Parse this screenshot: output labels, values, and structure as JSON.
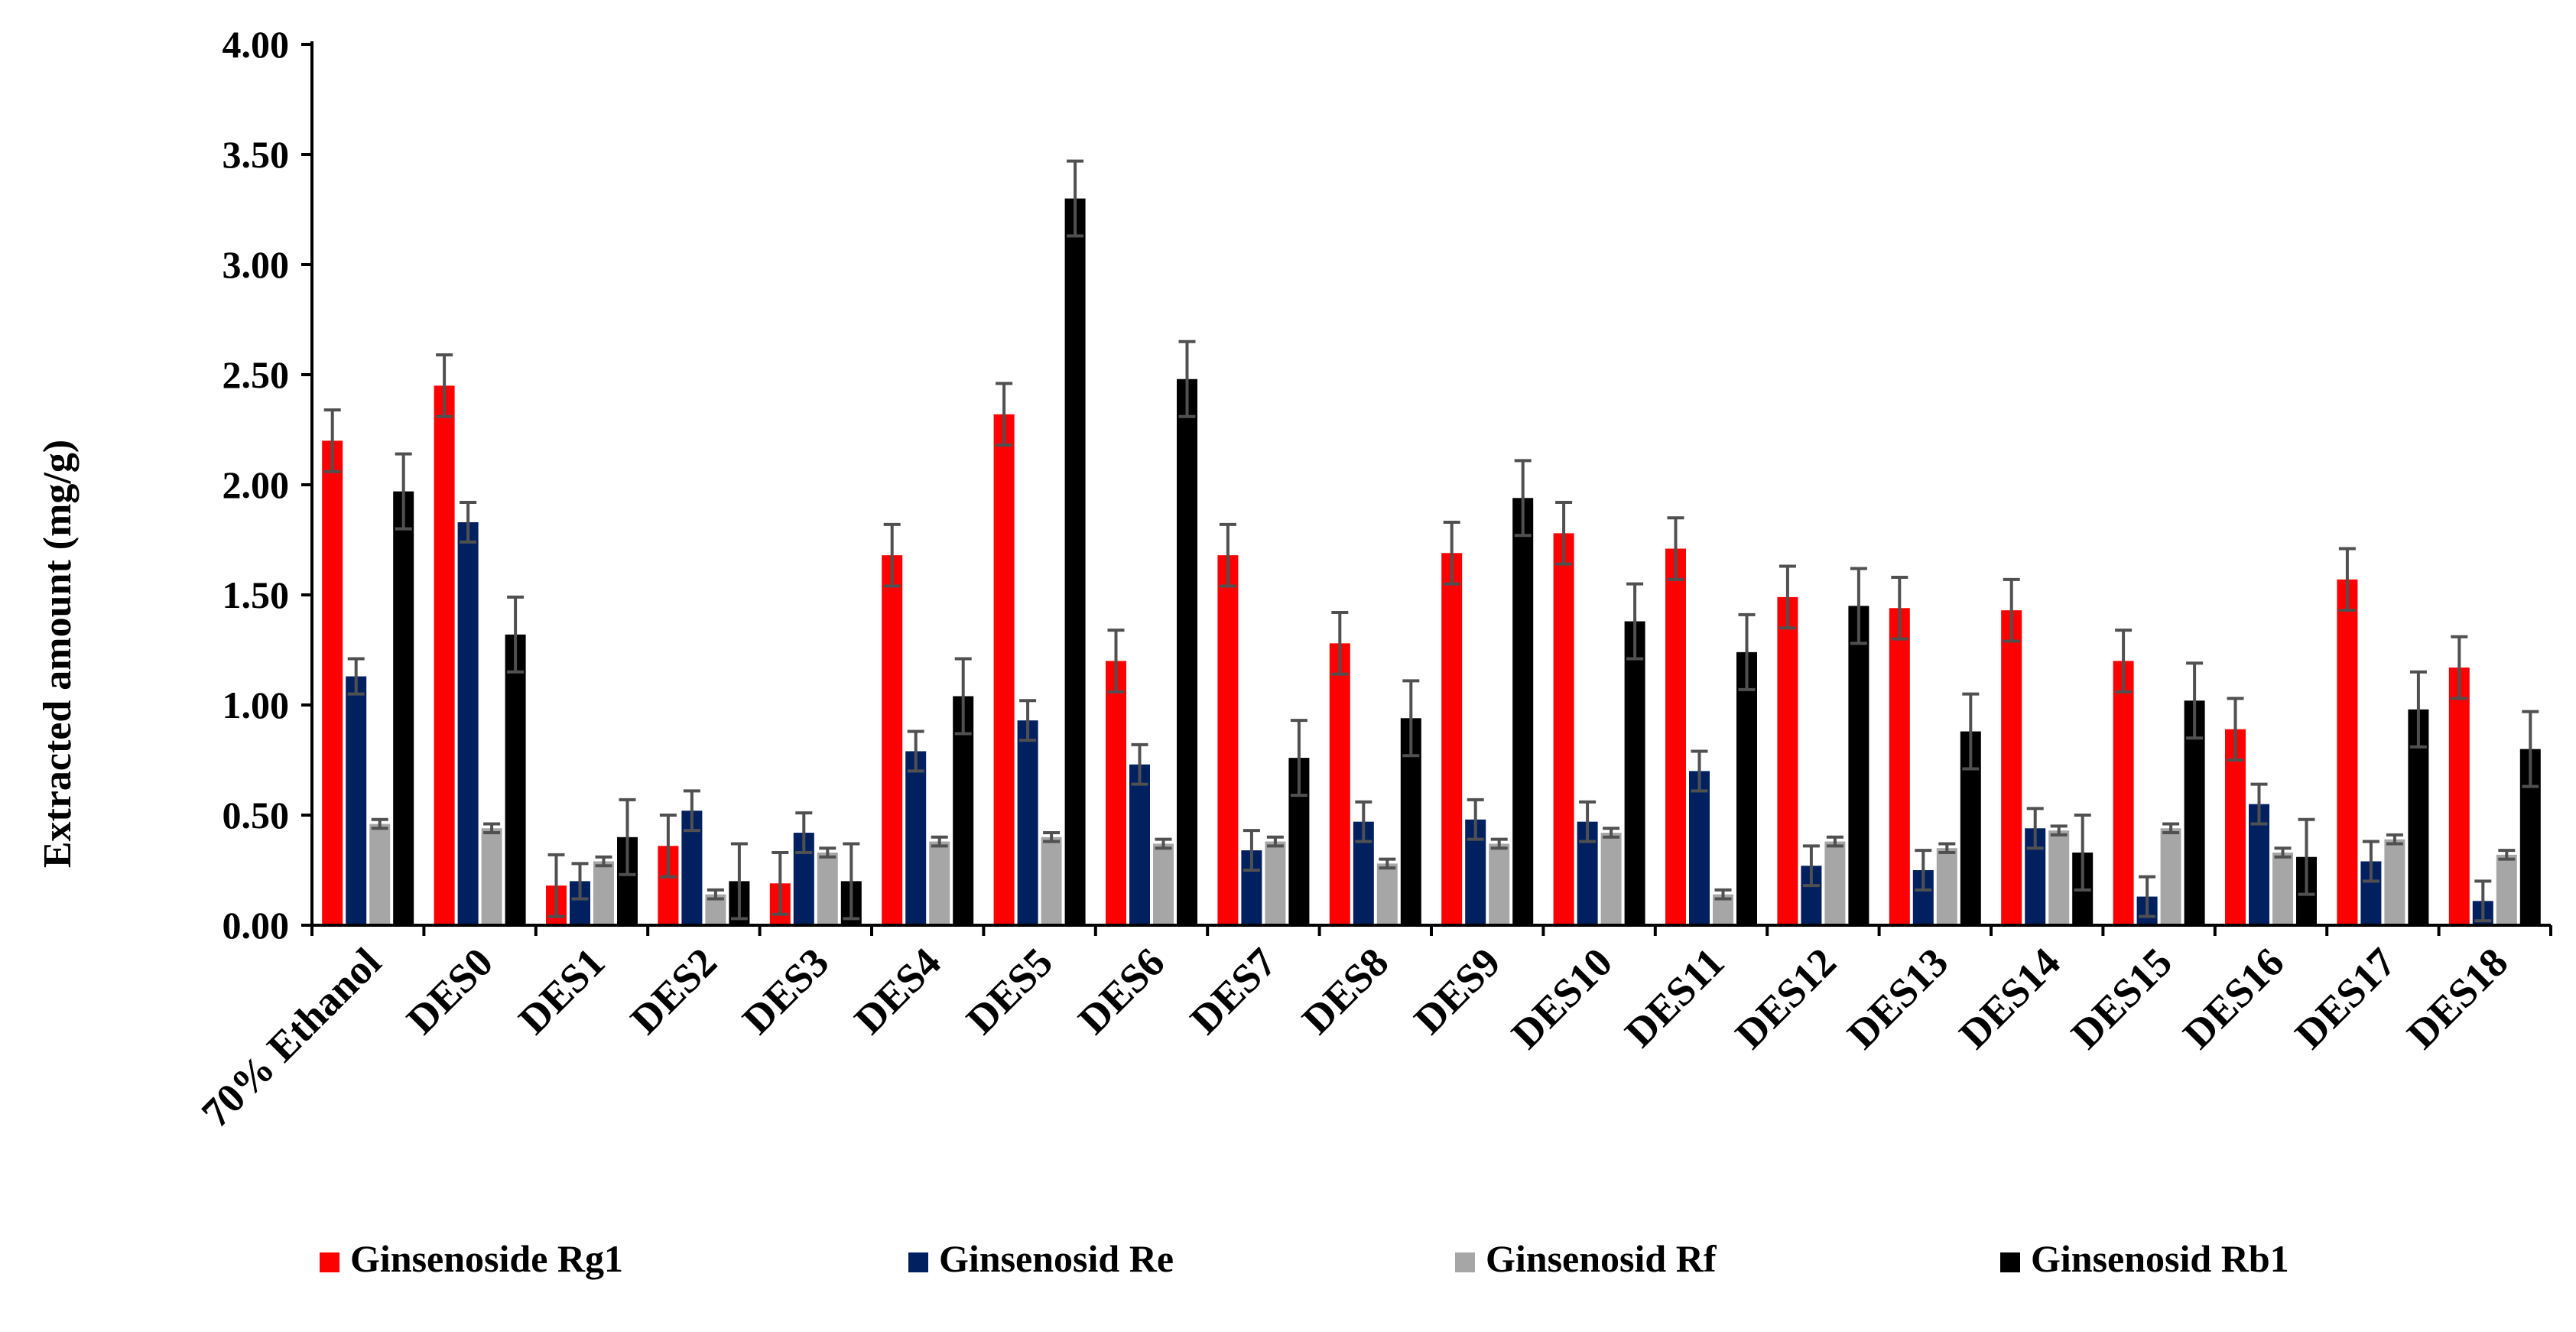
{
  "chart_data": {
    "type": "bar",
    "title": "",
    "xlabel": "",
    "ylabel": "Extracted amount (mg/g)",
    "ylim": [
      0,
      4.0
    ],
    "yticks": [
      "0.00",
      "0.50",
      "1.00",
      "1.50",
      "2.00",
      "2.50",
      "3.00",
      "3.50",
      "4.00"
    ],
    "grid": false,
    "legend_position": "bottom",
    "categories": [
      "70% Ethanol",
      "DES0",
      "DES1",
      "DES2",
      "DES3",
      "DES4",
      "DES5",
      "DES6",
      "DES7",
      "DES8",
      "DES9",
      "DES10",
      "DES11",
      "DES12",
      "DES13",
      "DES14",
      "DES15",
      "DES16",
      "DES17",
      "DES18"
    ],
    "series": [
      {
        "name": "Ginsenoside Rg1",
        "color": "#ff0000",
        "values": [
          2.2,
          2.45,
          0.18,
          0.36,
          0.19,
          1.68,
          2.32,
          1.2,
          1.68,
          1.28,
          1.69,
          1.78,
          1.71,
          1.49,
          1.44,
          1.43,
          1.2,
          0.89,
          1.57,
          1.17
        ],
        "errors": [
          0.14,
          0.14,
          0.14,
          0.14,
          0.14,
          0.14,
          0.14,
          0.14,
          0.14,
          0.14,
          0.14,
          0.14,
          0.14,
          0.14,
          0.14,
          0.14,
          0.14,
          0.14,
          0.14,
          0.14
        ]
      },
      {
        "name": "Ginsenosid Re",
        "color": "#002060",
        "values": [
          1.13,
          1.83,
          0.2,
          0.52,
          0.42,
          0.79,
          0.93,
          0.73,
          0.34,
          0.47,
          0.48,
          0.47,
          0.7,
          0.27,
          0.25,
          0.44,
          0.13,
          0.55,
          0.29,
          0.11
        ],
        "errors": [
          0.08,
          0.09,
          0.08,
          0.09,
          0.09,
          0.09,
          0.09,
          0.09,
          0.09,
          0.09,
          0.09,
          0.09,
          0.09,
          0.09,
          0.09,
          0.09,
          0.09,
          0.09,
          0.09,
          0.09
        ]
      },
      {
        "name": "Ginsenosid Rf",
        "color": "#a6a6a6",
        "values": [
          0.46,
          0.44,
          0.29,
          0.14,
          0.33,
          0.38,
          0.4,
          0.37,
          0.38,
          0.28,
          0.37,
          0.42,
          0.14,
          0.38,
          0.35,
          0.43,
          0.44,
          0.33,
          0.39,
          0.32
        ],
        "errors": [
          0.02,
          0.02,
          0.02,
          0.02,
          0.02,
          0.02,
          0.02,
          0.02,
          0.02,
          0.02,
          0.02,
          0.02,
          0.02,
          0.02,
          0.02,
          0.02,
          0.02,
          0.02,
          0.02,
          0.02
        ]
      },
      {
        "name": "Ginsenosid Rb1",
        "color": "#000000",
        "values": [
          1.97,
          1.32,
          0.4,
          0.2,
          0.2,
          1.04,
          3.3,
          2.48,
          0.76,
          0.94,
          1.94,
          1.38,
          1.24,
          1.45,
          0.88,
          0.33,
          1.02,
          0.31,
          0.98,
          0.8
        ],
        "errors": [
          0.17,
          0.17,
          0.17,
          0.17,
          0.17,
          0.17,
          0.17,
          0.17,
          0.17,
          0.17,
          0.17,
          0.17,
          0.17,
          0.17,
          0.17,
          0.17,
          0.17,
          0.17,
          0.17,
          0.17
        ]
      }
    ]
  }
}
